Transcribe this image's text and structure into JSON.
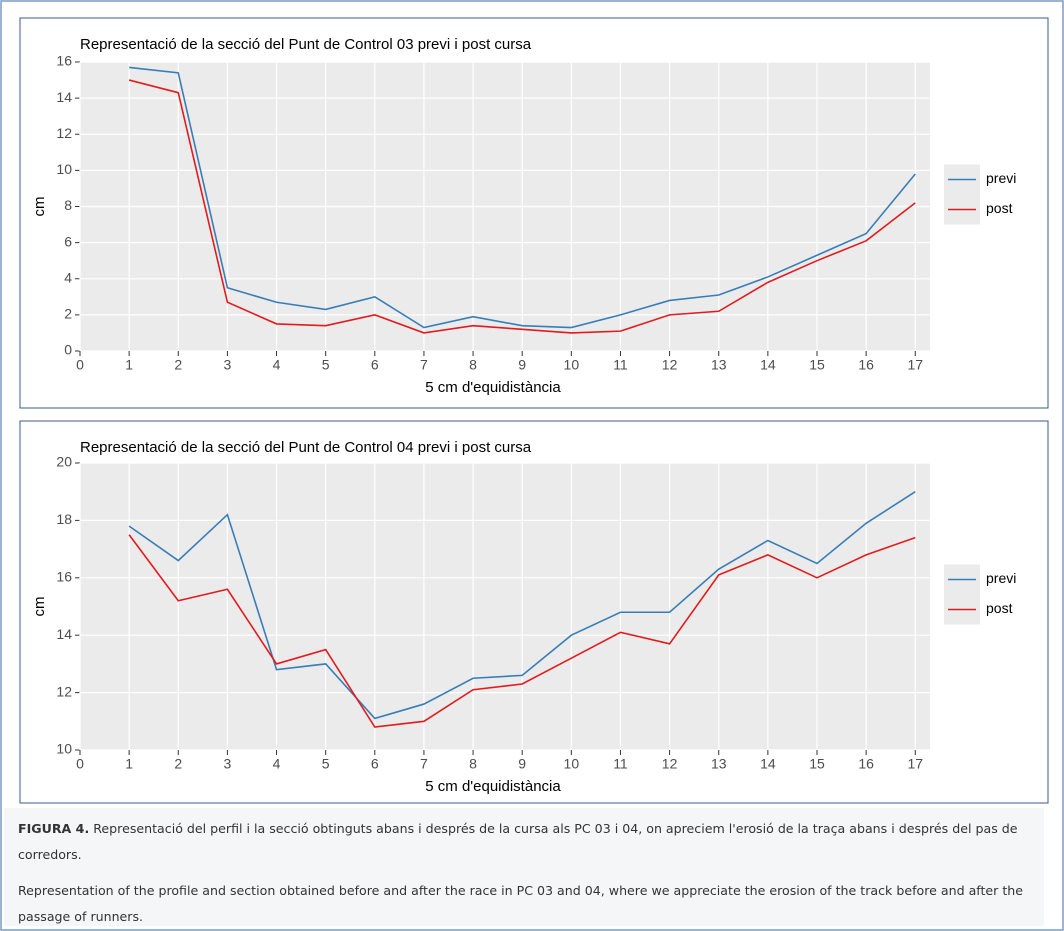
{
  "chart_data": [
    {
      "type": "line",
      "title": "Representació de la secció del Punt de Control 03 previ i post cursa",
      "x_label": "5 cm d'equidistància",
      "y_label": "cm",
      "x": [
        1,
        2,
        3,
        4,
        5,
        6,
        7,
        8,
        9,
        10,
        11,
        12,
        13,
        14,
        15,
        16,
        17
      ],
      "series": [
        {
          "name": "previ",
          "color": "#377eb8",
          "values": [
            15.7,
            15.4,
            3.5,
            2.7,
            2.3,
            3.0,
            1.3,
            1.9,
            1.4,
            1.3,
            2.0,
            2.8,
            3.1,
            4.1,
            5.3,
            6.5,
            9.8
          ]
        },
        {
          "name": "post",
          "color": "#e41a1c",
          "values": [
            15.0,
            14.3,
            2.7,
            1.5,
            1.4,
            2.0,
            1.0,
            1.4,
            1.2,
            1.0,
            1.1,
            2.0,
            2.2,
            3.8,
            5.0,
            6.1,
            8.2
          ]
        }
      ],
      "xlim": [
        0,
        17.3
      ],
      "xticks": [
        0,
        1,
        2,
        3,
        4,
        5,
        6,
        7,
        8,
        9,
        10,
        11,
        12,
        13,
        14,
        15,
        16,
        17
      ],
      "ylim": [
        0,
        16
      ],
      "yticks": [
        0,
        2,
        4,
        6,
        8,
        10,
        12,
        14,
        16
      ],
      "grid": true,
      "legend": "right"
    },
    {
      "type": "line",
      "title": "Representació de la secció del Punt de Control 04 previ i post cursa",
      "x_label": "5 cm d'equidistància",
      "y_label": "cm",
      "x": [
        1,
        2,
        3,
        4,
        5,
        6,
        7,
        8,
        9,
        10,
        11,
        12,
        13,
        14,
        15,
        16,
        17
      ],
      "series": [
        {
          "name": "previ",
          "color": "#377eb8",
          "values": [
            17.8,
            16.6,
            18.2,
            12.8,
            13.0,
            11.1,
            11.6,
            12.5,
            12.6,
            14.0,
            14.8,
            14.8,
            16.3,
            17.3,
            16.5,
            17.9,
            19.0
          ]
        },
        {
          "name": "post",
          "color": "#e41a1c",
          "values": [
            17.5,
            15.2,
            15.6,
            13.0,
            13.5,
            10.8,
            11.0,
            12.1,
            12.3,
            13.2,
            14.1,
            13.7,
            16.1,
            16.8,
            16.0,
            16.8,
            17.4
          ]
        }
      ],
      "xlim": [
        0,
        17.3
      ],
      "xticks": [
        0,
        1,
        2,
        3,
        4,
        5,
        6,
        7,
        8,
        9,
        10,
        11,
        12,
        13,
        14,
        15,
        16,
        17
      ],
      "ylim": [
        10,
        20
      ],
      "yticks": [
        10,
        12,
        14,
        16,
        18,
        20
      ],
      "grid": true,
      "legend": "right"
    }
  ],
  "caption": {
    "label": "FIGURA 4.",
    "text": "Representació del perfil i la secció obtinguts abans i després de la cursa als PC 03 i 04, on apreciem l'erosió de la traça abans i després del pas de corredors.",
    "translation": "Representation of the profile and section obtained before and after the race in PC 03 and 04, where we appreciate the erosion of the track before and after the passage of runners."
  }
}
